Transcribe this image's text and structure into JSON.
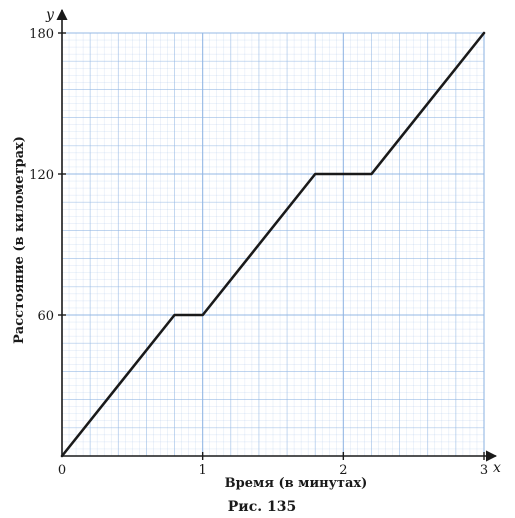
{
  "chart_data": {
    "type": "line",
    "xlabel": "Время (в минутах)",
    "ylabel": "Расстояние (в километрах)",
    "x_axis_letter": "x",
    "y_axis_letter": "y",
    "origin_label": "0",
    "caption": "Рис. 135",
    "xlim": [
      0,
      3
    ],
    "ylim": [
      0,
      180
    ],
    "x_ticks": [
      1,
      2,
      3
    ],
    "y_ticks": [
      60,
      120,
      180
    ],
    "grid": true,
    "grid_color": "#8fb4e3",
    "line_color": "#1a1a1a",
    "series": [
      {
        "x": [
          0,
          0.8,
          1.0,
          1.8,
          2.2,
          3.0
        ],
        "y": [
          0,
          60,
          60,
          120,
          120,
          180
        ]
      }
    ]
  }
}
